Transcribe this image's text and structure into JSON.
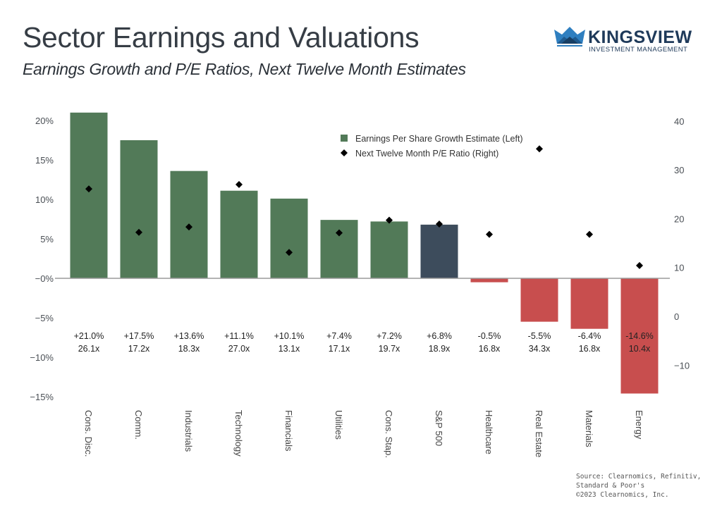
{
  "header": {
    "title": "Sector Earnings and Valuations",
    "subtitle": "Earnings Growth and P/E Ratios, Next Twelve Month Estimates"
  },
  "logo": {
    "name": "KINGSVIEW",
    "tagline": "INVESTMENT MANAGEMENT",
    "icon": "crown-icon"
  },
  "source": "Source: Clearnomics, Refinitiv,\nStandard & Poor's\n©2023 Clearnomics, Inc.",
  "colors": {
    "positive": "#527a58",
    "benchmark": "#3d4c5c",
    "negative": "#c84e4e",
    "marker": "#000000",
    "axis": "#9a9a9a"
  },
  "chart_data": {
    "type": "bar",
    "title": "Sector Earnings and Valuations",
    "subtitle": "Earnings Growth and P/E Ratios, Next Twelve Month Estimates",
    "categories": [
      "Cons. Disc.",
      "Comm.",
      "Industrials",
      "Technology",
      "Financials",
      "Utilities",
      "Cons. Stap.",
      "S&P 500",
      "Healthcare",
      "Real Estate",
      "Materials",
      "Energy"
    ],
    "series": [
      {
        "name": "Earnings Per Share Growth Estimate (Left)",
        "type": "bar",
        "axis": "left",
        "values": [
          21.0,
          17.5,
          13.6,
          11.1,
          10.1,
          7.4,
          7.2,
          6.8,
          -0.5,
          -5.5,
          -6.4,
          -14.6
        ]
      },
      {
        "name": "Next Twelve Month P/E Ratio (Right)",
        "type": "scatter",
        "marker": "diamond",
        "axis": "right",
        "values": [
          26.1,
          17.2,
          18.3,
          27.0,
          13.1,
          17.1,
          19.7,
          18.9,
          16.8,
          34.3,
          16.8,
          10.4
        ]
      }
    ],
    "growth_labels": [
      "+21.0%",
      "+17.5%",
      "+13.6%",
      "+11.1%",
      "+10.1%",
      "+7.4%",
      "+7.2%",
      "+6.8%",
      "-0.5%",
      "-5.5%",
      "-6.4%",
      "-14.6%"
    ],
    "pe_labels": [
      "26.1x",
      "17.2x",
      "18.3x",
      "27.0x",
      "13.1x",
      "17.1x",
      "19.7x",
      "18.9x",
      "16.8x",
      "34.3x",
      "16.8x",
      "10.4x"
    ],
    "highlight_category": "S&P 500",
    "left_axis": {
      "ylim": [
        -15,
        20
      ],
      "ticks": [
        20,
        15,
        10,
        5,
        0,
        -5,
        -10,
        -15
      ],
      "tick_labels": [
        "20%",
        "15%",
        "10%",
        "5%",
        "−0%",
        "−5%",
        "−10%",
        "−15%"
      ]
    },
    "right_axis": {
      "ylim": [
        -10,
        40
      ],
      "ticks": [
        40,
        30,
        20,
        10,
        0,
        -10
      ],
      "tick_labels": [
        "40",
        "30",
        "20",
        "10",
        "0",
        "−10"
      ]
    },
    "xlabel": "",
    "ylabel": "",
    "grid": false,
    "legend": {
      "placement": "top-center",
      "entries": [
        "Earnings Per Share Growth Estimate (Left)",
        "Next Twelve Month P/E Ratio (Right)"
      ]
    }
  }
}
